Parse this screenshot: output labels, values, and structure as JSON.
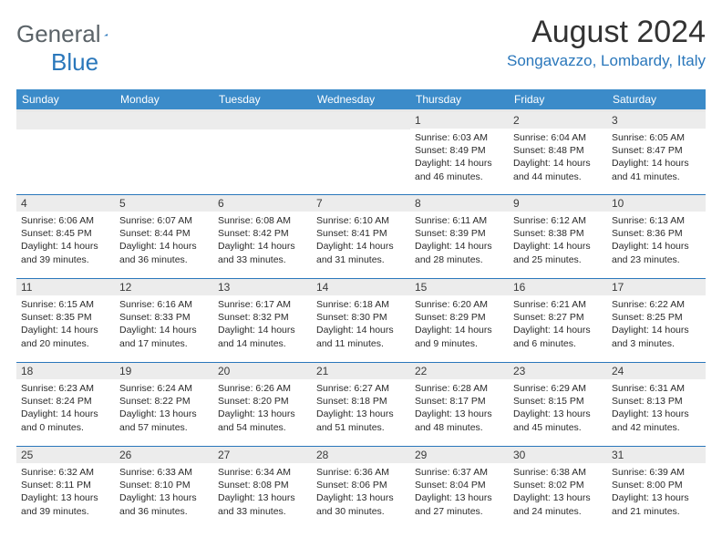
{
  "brand": {
    "part1": "General",
    "part2": "Blue"
  },
  "title": "August 2024",
  "location": "Songavazzo, Lombardy, Italy",
  "colors": {
    "header_bg": "#3b8bc9",
    "header_fg": "#ffffff",
    "row_divider": "#2a77bb",
    "daynum_bg": "#ececec",
    "daynum_fg": "#3a3a3a",
    "brand_gray": "#5b6368",
    "brand_blue": "#2a77bb",
    "title_color": "#333333",
    "body_fg": "#2a2a2a"
  },
  "day_headers": [
    "Sunday",
    "Monday",
    "Tuesday",
    "Wednesday",
    "Thursday",
    "Friday",
    "Saturday"
  ],
  "weeks": [
    [
      {
        "blank": true
      },
      {
        "blank": true
      },
      {
        "blank": true
      },
      {
        "blank": true
      },
      {
        "d": "1",
        "sr": "6:03 AM",
        "ss": "8:49 PM",
        "dl": "14 hours and 46 minutes."
      },
      {
        "d": "2",
        "sr": "6:04 AM",
        "ss": "8:48 PM",
        "dl": "14 hours and 44 minutes."
      },
      {
        "d": "3",
        "sr": "6:05 AM",
        "ss": "8:47 PM",
        "dl": "14 hours and 41 minutes."
      }
    ],
    [
      {
        "d": "4",
        "sr": "6:06 AM",
        "ss": "8:45 PM",
        "dl": "14 hours and 39 minutes."
      },
      {
        "d": "5",
        "sr": "6:07 AM",
        "ss": "8:44 PM",
        "dl": "14 hours and 36 minutes."
      },
      {
        "d": "6",
        "sr": "6:08 AM",
        "ss": "8:42 PM",
        "dl": "14 hours and 33 minutes."
      },
      {
        "d": "7",
        "sr": "6:10 AM",
        "ss": "8:41 PM",
        "dl": "14 hours and 31 minutes."
      },
      {
        "d": "8",
        "sr": "6:11 AM",
        "ss": "8:39 PM",
        "dl": "14 hours and 28 minutes."
      },
      {
        "d": "9",
        "sr": "6:12 AM",
        "ss": "8:38 PM",
        "dl": "14 hours and 25 minutes."
      },
      {
        "d": "10",
        "sr": "6:13 AM",
        "ss": "8:36 PM",
        "dl": "14 hours and 23 minutes."
      }
    ],
    [
      {
        "d": "11",
        "sr": "6:15 AM",
        "ss": "8:35 PM",
        "dl": "14 hours and 20 minutes."
      },
      {
        "d": "12",
        "sr": "6:16 AM",
        "ss": "8:33 PM",
        "dl": "14 hours and 17 minutes."
      },
      {
        "d": "13",
        "sr": "6:17 AM",
        "ss": "8:32 PM",
        "dl": "14 hours and 14 minutes."
      },
      {
        "d": "14",
        "sr": "6:18 AM",
        "ss": "8:30 PM",
        "dl": "14 hours and 11 minutes."
      },
      {
        "d": "15",
        "sr": "6:20 AM",
        "ss": "8:29 PM",
        "dl": "14 hours and 9 minutes."
      },
      {
        "d": "16",
        "sr": "6:21 AM",
        "ss": "8:27 PM",
        "dl": "14 hours and 6 minutes."
      },
      {
        "d": "17",
        "sr": "6:22 AM",
        "ss": "8:25 PM",
        "dl": "14 hours and 3 minutes."
      }
    ],
    [
      {
        "d": "18",
        "sr": "6:23 AM",
        "ss": "8:24 PM",
        "dl": "14 hours and 0 minutes."
      },
      {
        "d": "19",
        "sr": "6:24 AM",
        "ss": "8:22 PM",
        "dl": "13 hours and 57 minutes."
      },
      {
        "d": "20",
        "sr": "6:26 AM",
        "ss": "8:20 PM",
        "dl": "13 hours and 54 minutes."
      },
      {
        "d": "21",
        "sr": "6:27 AM",
        "ss": "8:18 PM",
        "dl": "13 hours and 51 minutes."
      },
      {
        "d": "22",
        "sr": "6:28 AM",
        "ss": "8:17 PM",
        "dl": "13 hours and 48 minutes."
      },
      {
        "d": "23",
        "sr": "6:29 AM",
        "ss": "8:15 PM",
        "dl": "13 hours and 45 minutes."
      },
      {
        "d": "24",
        "sr": "6:31 AM",
        "ss": "8:13 PM",
        "dl": "13 hours and 42 minutes."
      }
    ],
    [
      {
        "d": "25",
        "sr": "6:32 AM",
        "ss": "8:11 PM",
        "dl": "13 hours and 39 minutes."
      },
      {
        "d": "26",
        "sr": "6:33 AM",
        "ss": "8:10 PM",
        "dl": "13 hours and 36 minutes."
      },
      {
        "d": "27",
        "sr": "6:34 AM",
        "ss": "8:08 PM",
        "dl": "13 hours and 33 minutes."
      },
      {
        "d": "28",
        "sr": "6:36 AM",
        "ss": "8:06 PM",
        "dl": "13 hours and 30 minutes."
      },
      {
        "d": "29",
        "sr": "6:37 AM",
        "ss": "8:04 PM",
        "dl": "13 hours and 27 minutes."
      },
      {
        "d": "30",
        "sr": "6:38 AM",
        "ss": "8:02 PM",
        "dl": "13 hours and 24 minutes."
      },
      {
        "d": "31",
        "sr": "6:39 AM",
        "ss": "8:00 PM",
        "dl": "13 hours and 21 minutes."
      }
    ]
  ],
  "labels": {
    "sunrise": "Sunrise:",
    "sunset": "Sunset:",
    "daylight": "Daylight:"
  }
}
